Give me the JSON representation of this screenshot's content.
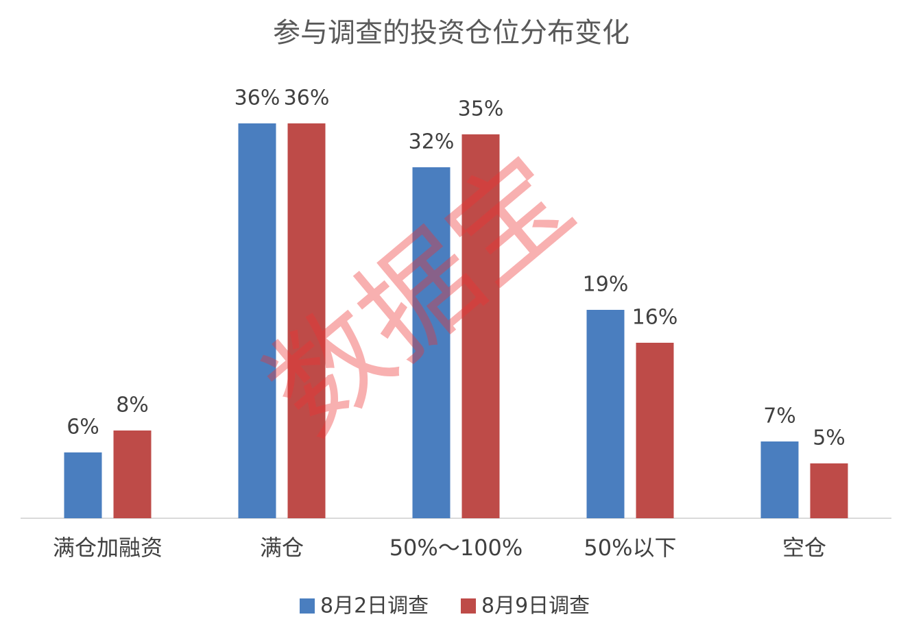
{
  "chart_data": {
    "type": "bar",
    "title": "参与调查的投资仓位分布变化",
    "categories": [
      "满仓加融资",
      "满仓",
      "50%～100%",
      "50%以下",
      "空仓"
    ],
    "series": [
      {
        "name": "8月2日调查",
        "color": "#4a7ebf",
        "values": [
          6,
          36,
          32,
          19,
          7
        ],
        "value_labels": [
          "6%",
          "36%",
          "32%",
          "19%",
          "7%"
        ]
      },
      {
        "name": "8月9日调查",
        "color": "#be4b48",
        "values": [
          8,
          36,
          35,
          16,
          5
        ],
        "value_labels": [
          "8%",
          "36%",
          "35%",
          "16%",
          "5%"
        ]
      }
    ],
    "watermark": "数据宝"
  }
}
